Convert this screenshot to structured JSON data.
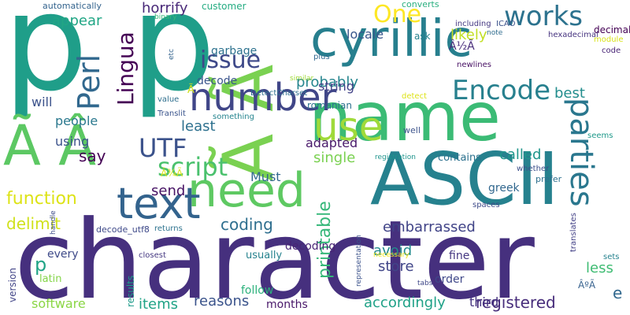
{
  "words": [
    {
      "text": "character",
      "color": "#46307e"
    },
    {
      "text": "p p",
      "color": "#1f9e89"
    },
    {
      "text": "ASCII",
      "color": "#26818e"
    },
    {
      "text": "name",
      "color": "#3bbb75"
    },
    {
      "text": "Ã Â",
      "color": "#5cc863"
    },
    {
      "text": "Ã Ã",
      "color": "#7ad151"
    },
    {
      "text": "cyrillic",
      "color": "#277f8e"
    },
    {
      "text": "need",
      "color": "#5ec962"
    },
    {
      "text": "number",
      "color": "#404688"
    },
    {
      "text": "text",
      "color": "#33638d"
    },
    {
      "text": "use",
      "color": "#9fda3a"
    },
    {
      "text": "parties",
      "color": "#2a778e"
    },
    {
      "text": "Encode",
      "color": "#27808e"
    },
    {
      "text": "script",
      "color": "#4ac16d"
    },
    {
      "text": "works",
      "color": "#2c728e"
    },
    {
      "text": "Perl",
      "color": "#31688e"
    },
    {
      "text": "Lingua",
      "color": "#440154"
    },
    {
      "text": "issue",
      "color": "#3e4989"
    },
    {
      "text": "One",
      "color": "#fde725"
    },
    {
      "text": "UTF",
      "color": "#3b528b"
    },
    {
      "text": "function",
      "color": "#dde318"
    },
    {
      "text": "printable",
      "color": "#35b779"
    },
    {
      "text": "registered",
      "color": "#472d7b"
    },
    {
      "text": "horrify",
      "color": "#482878"
    },
    {
      "text": "probably",
      "color": "#25858e"
    },
    {
      "text": "likely",
      "color": "#c2df23"
    },
    {
      "text": "locale",
      "color": "#39568c"
    },
    {
      "text": "appear",
      "color": "#21a685"
    },
    {
      "text": "delimit",
      "color": "#d0e11c"
    },
    {
      "text": "coding",
      "color": "#2e6e8e"
    },
    {
      "text": "embarrassed",
      "color": "#404387"
    },
    {
      "text": "reasons",
      "color": "#3a538b"
    },
    {
      "text": "accordingly",
      "color": "#1fa187"
    },
    {
      "text": "items",
      "color": "#20a386"
    },
    {
      "text": "software",
      "color": "#8bd646"
    },
    {
      "text": "third",
      "color": "#463480"
    },
    {
      "text": "string",
      "color": "#414287"
    },
    {
      "text": "best",
      "color": "#228d8d"
    },
    {
      "text": "called",
      "color": "#1f968b"
    },
    {
      "text": "people",
      "color": "#2a788e"
    },
    {
      "text": "least",
      "color": "#2d708e"
    },
    {
      "text": "using",
      "color": "#3b528b"
    },
    {
      "text": "say",
      "color": "#440154"
    },
    {
      "text": "send",
      "color": "#471365"
    },
    {
      "text": "single",
      "color": "#7ad151"
    },
    {
      "text": "avoid",
      "color": "#238a8d"
    },
    {
      "text": "store",
      "color": "#404588"
    },
    {
      "text": "less",
      "color": "#3fbc73"
    },
    {
      "text": "Must",
      "color": "#31688e"
    },
    {
      "text": "adapted",
      "color": "#48186a"
    },
    {
      "text": "greek",
      "color": "#31678e"
    },
    {
      "text": "decoding",
      "color": "#482475"
    },
    {
      "text": "follow",
      "color": "#2db27d"
    },
    {
      "text": "months",
      "color": "#481769"
    },
    {
      "text": "decode",
      "color": "#3a548c"
    },
    {
      "text": "garbage",
      "color": "#2c718e"
    },
    {
      "text": "will",
      "color": "#3b528b"
    },
    {
      "text": "customer",
      "color": "#25ac82"
    },
    {
      "text": "romanian",
      "color": "#2d718e"
    },
    {
      "text": "decode_utf8",
      "color": "#3e4989"
    },
    {
      "text": "contains",
      "color": "#2c718e"
    },
    {
      "text": "every",
      "color": "#3e4a89"
    },
    {
      "text": "usually",
      "color": "#26828e"
    },
    {
      "text": "fine",
      "color": "#453781"
    },
    {
      "text": "order",
      "color": "#3f4889"
    },
    {
      "text": "latin",
      "color": "#85d54a"
    },
    {
      "text": "version",
      "color": "#414487"
    },
    {
      "text": "results",
      "color": "#1e9b8a"
    },
    {
      "text": "ask",
      "color": "#26828e"
    },
    {
      "text": "Â½Ã",
      "color": "#472c7a"
    },
    {
      "text": "Â¾Ã",
      "color": "#dde318"
    },
    {
      "text": "ÂºÃ",
      "color": "#35608d"
    },
    {
      "text": "Ã",
      "color": "#d0e11c"
    },
    {
      "text": "p",
      "color": "#20a486"
    },
    {
      "text": "e",
      "color": "#31688e"
    },
    {
      "text": "automatically",
      "color": "#33638d"
    },
    {
      "text": "binary",
      "color": "#38b977"
    },
    {
      "text": "converts",
      "color": "#29af7f"
    },
    {
      "text": "including",
      "color": "#453882"
    },
    {
      "text": "ICAO",
      "color": "#3b528b"
    },
    {
      "text": "note",
      "color": "#2f6c8e"
    },
    {
      "text": "decimal",
      "color": "#440154"
    },
    {
      "text": "module",
      "color": "#d8e219"
    },
    {
      "text": "hexadecimal",
      "color": "#46337f"
    },
    {
      "text": "code",
      "color": "#482475"
    },
    {
      "text": "etc",
      "color": "#33638d"
    },
    {
      "text": "newlines",
      "color": "#471063"
    },
    {
      "text": "plus",
      "color": "#31678e"
    },
    {
      "text": "DetectCharset",
      "color": "#2e6f8e"
    },
    {
      "text": "detect",
      "color": "#dde318"
    },
    {
      "text": "similar",
      "color": "#a0da39"
    },
    {
      "text": "value",
      "color": "#2e6f8e"
    },
    {
      "text": "Translit",
      "color": "#3a548c"
    },
    {
      "text": "something",
      "color": "#25848e"
    },
    {
      "text": "well",
      "color": "#3b528b"
    },
    {
      "text": "seems",
      "color": "#1f998a"
    },
    {
      "text": "handle",
      "color": "#3e4c8a"
    },
    {
      "text": "returns",
      "color": "#2c728e"
    },
    {
      "text": "registration",
      "color": "#1f948c"
    },
    {
      "text": "representation",
      "color": "#3b528b"
    },
    {
      "text": "whether",
      "color": "#3c4f8a"
    },
    {
      "text": "prefer",
      "color": "#2d708e"
    },
    {
      "text": "spaces",
      "color": "#3e4a89"
    },
    {
      "text": "necessary",
      "color": "#f1e51d"
    },
    {
      "text": "closest",
      "color": "#453882"
    },
    {
      "text": "tabs",
      "color": "#3f4788"
    },
    {
      "text": "translates",
      "color": "#424086"
    },
    {
      "text": "sets",
      "color": "#26828e"
    }
  ]
}
